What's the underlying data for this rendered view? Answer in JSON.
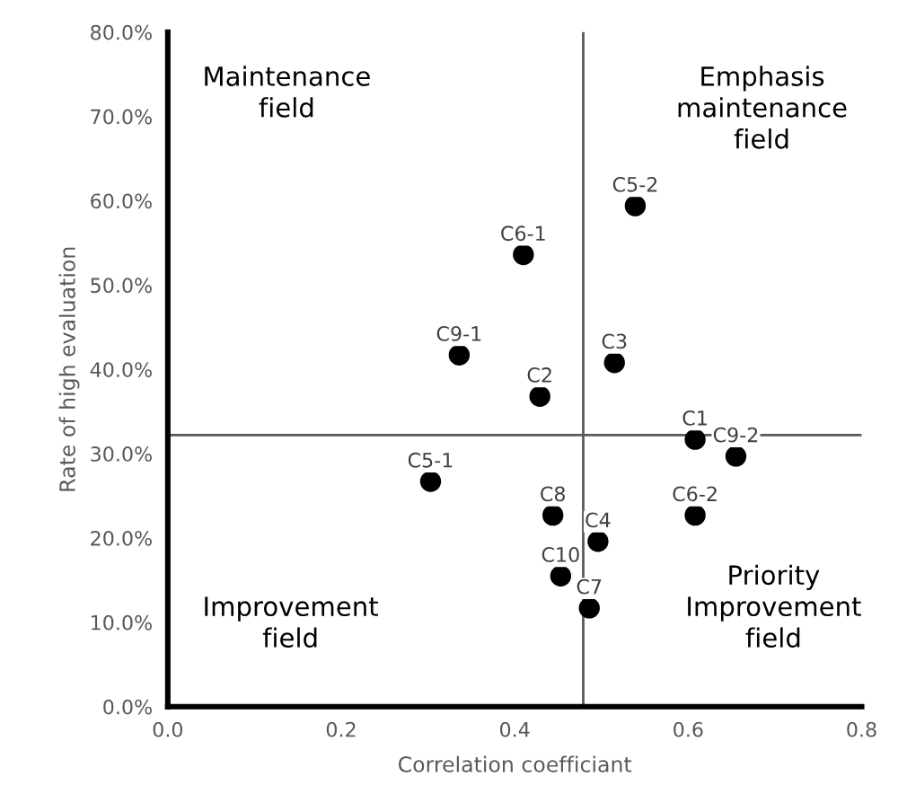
{
  "chart_data": {
    "type": "scatter",
    "xlabel": "Correlation coefficiant",
    "ylabel": "Rate of high evaluation",
    "xlim": [
      0,
      0.8
    ],
    "ylim": [
      0,
      80
    ],
    "xticks": [
      {
        "value": 0,
        "label": "0.0"
      },
      {
        "value": 0.2,
        "label": "0.2"
      },
      {
        "value": 0.4,
        "label": "0.4"
      },
      {
        "value": 0.6,
        "label": "0.6"
      },
      {
        "value": 0.8,
        "label": "0.8"
      }
    ],
    "yticks": [
      {
        "value": 0,
        "label": "0.0%"
      },
      {
        "value": 10,
        "label": "10.0%"
      },
      {
        "value": 20,
        "label": "20.0%"
      },
      {
        "value": 30,
        "label": "30.0%"
      },
      {
        "value": 40,
        "label": "40.0%"
      },
      {
        "value": 50,
        "label": "50.0%"
      },
      {
        "value": 60,
        "label": "60.0%"
      },
      {
        "value": 70,
        "label": "70.0%"
      },
      {
        "value": 80,
        "label": "80.0%"
      }
    ],
    "marker": "circle",
    "grid": false,
    "series": [
      {
        "name": "C5-2",
        "color": "#000000",
        "x": [
          0.539
        ],
        "values": [
          59.4
        ]
      },
      {
        "name": "C6-1",
        "color": "#000000",
        "x": [
          0.41
        ],
        "values": [
          53.6
        ]
      },
      {
        "name": "C9-1",
        "color": "#000000",
        "x": [
          0.336
        ],
        "values": [
          41.7
        ]
      },
      {
        "name": "C3",
        "color": "#000000",
        "x": [
          0.515
        ],
        "values": [
          40.8
        ]
      },
      {
        "name": "C2",
        "color": "#000000",
        "x": [
          0.429
        ],
        "values": [
          36.8
        ]
      },
      {
        "name": "C1",
        "color": "#000000",
        "x": [
          0.608
        ],
        "values": [
          31.7
        ]
      },
      {
        "name": "C9-2",
        "color": "#000000",
        "x": [
          0.655
        ],
        "values": [
          29.7
        ]
      },
      {
        "name": "C5-1",
        "color": "#000000",
        "x": [
          0.303
        ],
        "values": [
          26.7
        ]
      },
      {
        "name": "C8",
        "color": "#000000",
        "x": [
          0.444
        ],
        "values": [
          22.7
        ]
      },
      {
        "name": "C6-2",
        "color": "#000000",
        "x": [
          0.608
        ],
        "values": [
          22.7
        ]
      },
      {
        "name": "C4",
        "color": "#000000",
        "x": [
          0.496
        ],
        "values": [
          19.6
        ]
      },
      {
        "name": "C10",
        "color": "#000000",
        "x": [
          0.453
        ],
        "values": [
          15.5
        ]
      },
      {
        "name": "C7",
        "color": "#000000",
        "x": [
          0.486
        ],
        "values": [
          11.7
        ]
      }
    ],
    "ref_lines": [
      {
        "axis": "x",
        "value": 0.479,
        "color": "#595959"
      },
      {
        "axis": "y",
        "value": 32.2,
        "color": "#595959"
      }
    ],
    "annotations": [
      "Maintenance\nfield",
      "Emphasis\nmaintenance\nfield",
      "Improvement\nfield",
      "Priority\nImprovement\nfield"
    ]
  }
}
